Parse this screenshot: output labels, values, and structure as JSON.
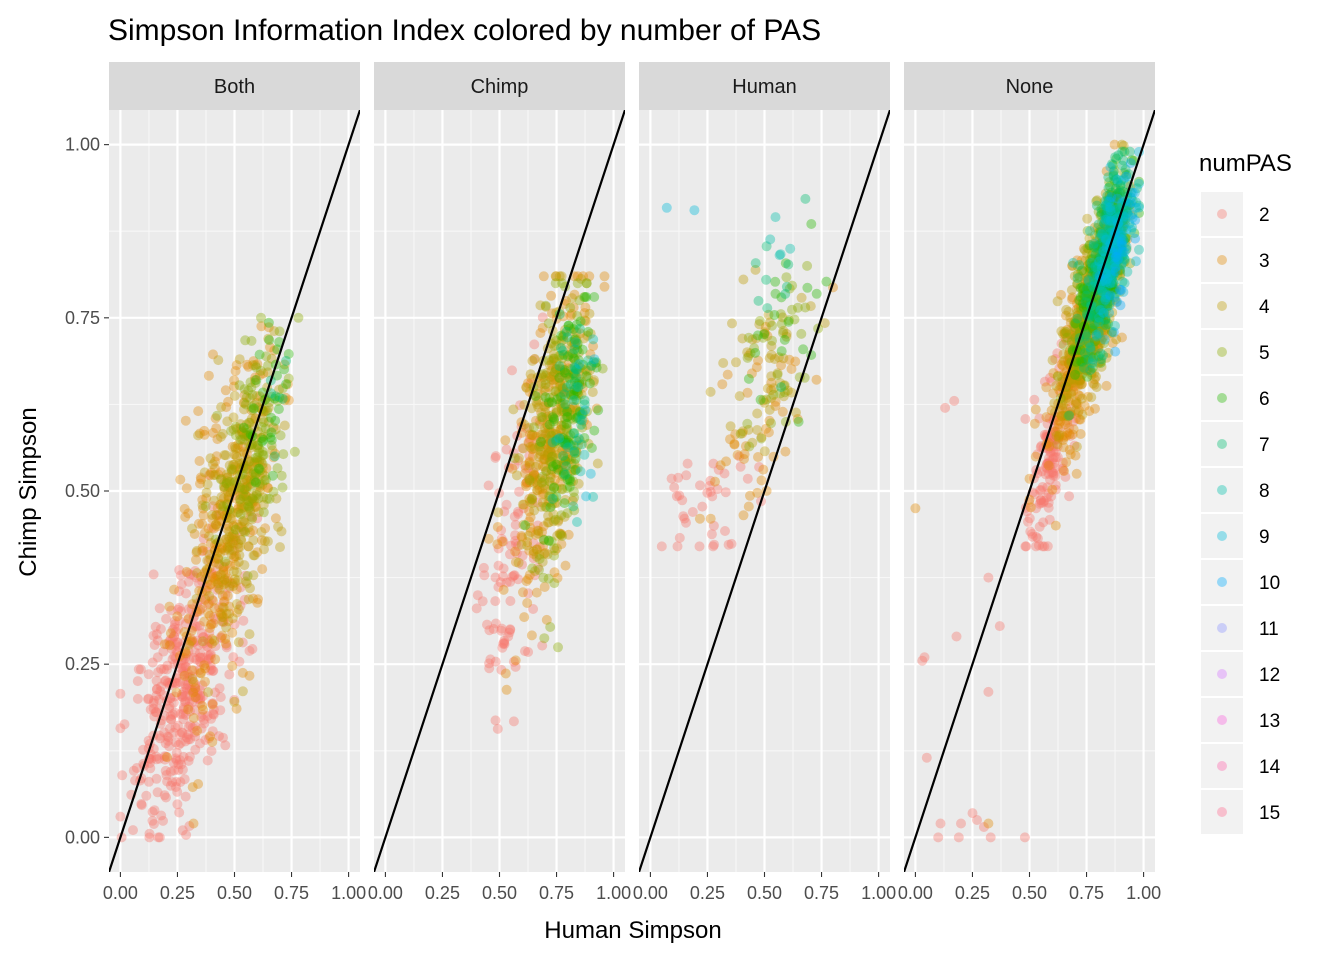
{
  "chart_data": {
    "type": "scatter",
    "title": "Simpson Information Index colored by number of PAS",
    "xlabel": "Human Simpson",
    "ylabel": "Chimp Simpson",
    "xlim": [
      -0.05,
      1.05
    ],
    "ylim": [
      -0.05,
      1.05
    ],
    "x_ticks": [
      "0.00",
      "0.25",
      "0.50",
      "0.75",
      "1.00"
    ],
    "y_ticks": [
      "0.00",
      "0.25",
      "0.50",
      "0.75",
      "1.00"
    ],
    "x_tick_values": [
      0,
      0.25,
      0.5,
      0.75,
      1
    ],
    "y_tick_values": [
      0,
      0.25,
      0.5,
      0.75,
      1
    ],
    "reference_line": {
      "intercept": 0,
      "slope": 1
    },
    "legend": {
      "title": "numPAS",
      "position": "right",
      "entries": [
        "2",
        "3",
        "4",
        "5",
        "6",
        "7",
        "8",
        "9",
        "10",
        "11",
        "12",
        "13",
        "14",
        "15"
      ],
      "colors": [
        "#F8766D",
        "#E18A00",
        "#BE9C00",
        "#8CAB00",
        "#24B700",
        "#00BE70",
        "#00C1AB",
        "#00BBDA",
        "#00ACFC",
        "#8B93FF",
        "#D575FE",
        "#F962DD",
        "#FF65AC",
        "#FF6C91"
      ]
    },
    "point_alpha": 0.38,
    "panels": [
      {
        "label": "Both",
        "clusters": [
          {
            "pas": 2,
            "n": 420,
            "cx": 0.28,
            "cy": 0.22,
            "sx": 0.11,
            "sy": 0.1,
            "rho": 0.55,
            "xmin": 0.0,
            "xmax": 0.76,
            "ymin": 0.0,
            "ymax": 0.8
          },
          {
            "pas": 3,
            "n": 300,
            "cx": 0.45,
            "cy": 0.42,
            "sx": 0.11,
            "sy": 0.13,
            "rho": 0.6,
            "xmin": 0.1,
            "xmax": 0.78,
            "ymin": 0.02,
            "ymax": 0.75
          },
          {
            "pas": 4,
            "n": 230,
            "cx": 0.53,
            "cy": 0.5,
            "sx": 0.09,
            "sy": 0.1,
            "rho": 0.5,
            "xmin": 0.15,
            "xmax": 0.78,
            "ymin": 0.05,
            "ymax": 0.75
          },
          {
            "pas": 5,
            "n": 110,
            "cx": 0.59,
            "cy": 0.56,
            "sx": 0.08,
            "sy": 0.08,
            "rho": 0.4,
            "xmin": 0.3,
            "xmax": 0.78,
            "ymin": 0.15,
            "ymax": 0.75
          },
          {
            "pas": 6,
            "n": 30,
            "cx": 0.66,
            "cy": 0.62,
            "sx": 0.05,
            "sy": 0.05,
            "rho": 0.3,
            "xmin": 0.45,
            "xmax": 0.78,
            "ymin": 0.4,
            "ymax": 0.75
          },
          {
            "pas": 7,
            "n": 6,
            "cx": 0.7,
            "cy": 0.64,
            "sx": 0.03,
            "sy": 0.04,
            "rho": 0.2,
            "xmin": 0.6,
            "xmax": 0.78,
            "ymin": 0.55,
            "ymax": 0.72
          }
        ]
      },
      {
        "label": "Chimp",
        "clusters": [
          {
            "pas": 2,
            "n": 110,
            "cx": 0.56,
            "cy": 0.42,
            "sx": 0.07,
            "sy": 0.12,
            "rho": 0.5,
            "xmin": 0.4,
            "xmax": 0.96,
            "ymin": 0.01,
            "ymax": 0.81
          },
          {
            "pas": 3,
            "n": 220,
            "cx": 0.72,
            "cy": 0.55,
            "sx": 0.09,
            "sy": 0.12,
            "rho": 0.55,
            "xmin": 0.45,
            "xmax": 0.96,
            "ymin": 0.05,
            "ymax": 0.81
          },
          {
            "pas": 4,
            "n": 220,
            "cx": 0.74,
            "cy": 0.6,
            "sx": 0.08,
            "sy": 0.1,
            "rho": 0.5,
            "xmin": 0.45,
            "xmax": 0.96,
            "ymin": 0.05,
            "ymax": 0.81
          },
          {
            "pas": 5,
            "n": 120,
            "cx": 0.78,
            "cy": 0.58,
            "sx": 0.07,
            "sy": 0.11,
            "rho": 0.45,
            "xmin": 0.5,
            "xmax": 0.96,
            "ymin": 0.05,
            "ymax": 0.8
          },
          {
            "pas": 6,
            "n": 90,
            "cx": 0.8,
            "cy": 0.62,
            "sx": 0.06,
            "sy": 0.08,
            "rho": 0.4,
            "xmin": 0.55,
            "xmax": 0.96,
            "ymin": 0.3,
            "ymax": 0.78
          },
          {
            "pas": 7,
            "n": 35,
            "cx": 0.82,
            "cy": 0.64,
            "sx": 0.05,
            "sy": 0.06,
            "rho": 0.3,
            "xmin": 0.6,
            "xmax": 0.96,
            "ymin": 0.35,
            "ymax": 0.78
          },
          {
            "pas": 8,
            "n": 14,
            "cx": 0.85,
            "cy": 0.6,
            "sx": 0.05,
            "sy": 0.1,
            "rho": 0.2,
            "xmin": 0.65,
            "xmax": 0.96,
            "ymin": 0.03,
            "ymax": 0.78
          },
          {
            "pas": 9,
            "n": 6,
            "cx": 0.87,
            "cy": 0.58,
            "sx": 0.04,
            "sy": 0.1,
            "rho": 0.2,
            "xmin": 0.65,
            "xmax": 0.96,
            "ymin": 0.2,
            "ymax": 0.75
          }
        ]
      },
      {
        "label": "Human",
        "clusters": [
          {
            "pas": 2,
            "n": 40,
            "cx": 0.24,
            "cy": 0.5,
            "sx": 0.09,
            "sy": 0.05,
            "rho": 0.3,
            "xmin": 0.05,
            "xmax": 0.5,
            "ymin": 0.42,
            "ymax": 0.62
          },
          {
            "pas": 3,
            "n": 50,
            "cx": 0.43,
            "cy": 0.6,
            "sx": 0.12,
            "sy": 0.08,
            "rho": 0.4,
            "xmin": 0.05,
            "xmax": 0.8,
            "ymin": 0.46,
            "ymax": 0.8
          },
          {
            "pas": 4,
            "n": 50,
            "cx": 0.48,
            "cy": 0.66,
            "sx": 0.11,
            "sy": 0.08,
            "rho": 0.4,
            "xmin": 0.05,
            "xmax": 0.8,
            "ymin": 0.5,
            "ymax": 0.82
          },
          {
            "pas": 5,
            "n": 35,
            "cx": 0.56,
            "cy": 0.7,
            "sx": 0.09,
            "sy": 0.07,
            "rho": 0.4,
            "xmin": 0.2,
            "xmax": 0.8,
            "ymin": 0.55,
            "ymax": 0.95
          },
          {
            "pas": 6,
            "n": 20,
            "cx": 0.6,
            "cy": 0.74,
            "sx": 0.08,
            "sy": 0.07,
            "rho": 0.3,
            "xmin": 0.1,
            "xmax": 0.8,
            "ymin": 0.6,
            "ymax": 0.92
          },
          {
            "pas": 7,
            "n": 10,
            "cx": 0.6,
            "cy": 0.8,
            "sx": 0.08,
            "sy": 0.06,
            "rho": 0.2,
            "xmin": 0.2,
            "xmax": 0.8,
            "ymin": 0.65,
            "ymax": 0.93
          },
          {
            "pas": 8,
            "n": 5,
            "cx": 0.58,
            "cy": 0.86,
            "sx": 0.08,
            "sy": 0.05,
            "rho": 0.2,
            "xmin": 0.3,
            "xmax": 0.8,
            "ymin": 0.75,
            "ymax": 0.93
          },
          {
            "pas": 9,
            "n": 2,
            "cx": 0.3,
            "cy": 0.9,
            "sx": 0.2,
            "sy": 0.02,
            "rho": 0.0,
            "xmin": 0.0,
            "xmax": 0.8,
            "ymin": 0.85,
            "ymax": 0.93
          }
        ]
      },
      {
        "label": "None",
        "clusters": [
          {
            "pas": 2,
            "n": 150,
            "cx": 0.6,
            "cy": 0.56,
            "sx": 0.05,
            "sy": 0.07,
            "rho": 0.7,
            "xmin": 0.45,
            "xmax": 0.98,
            "ymin": 0.42,
            "ymax": 1.0
          },
          {
            "pas": 3,
            "n": 280,
            "cx": 0.72,
            "cy": 0.7,
            "sx": 0.08,
            "sy": 0.09,
            "rho": 0.75,
            "xmin": 0.5,
            "xmax": 0.98,
            "ymin": 0.45,
            "ymax": 1.0
          },
          {
            "pas": 4,
            "n": 280,
            "cx": 0.77,
            "cy": 0.76,
            "sx": 0.07,
            "sy": 0.08,
            "rho": 0.7,
            "xmin": 0.55,
            "xmax": 0.98,
            "ymin": 0.5,
            "ymax": 1.0
          },
          {
            "pas": 5,
            "n": 220,
            "cx": 0.8,
            "cy": 0.8,
            "sx": 0.06,
            "sy": 0.07,
            "rho": 0.7,
            "xmin": 0.6,
            "xmax": 0.98,
            "ymin": 0.55,
            "ymax": 1.0
          },
          {
            "pas": 6,
            "n": 200,
            "cx": 0.83,
            "cy": 0.82,
            "sx": 0.06,
            "sy": 0.07,
            "rho": 0.7,
            "xmin": 0.62,
            "xmax": 0.98,
            "ymin": 0.58,
            "ymax": 0.99
          },
          {
            "pas": 7,
            "n": 180,
            "cx": 0.84,
            "cy": 0.84,
            "sx": 0.05,
            "sy": 0.07,
            "rho": 0.65,
            "xmin": 0.65,
            "xmax": 0.98,
            "ymin": 0.6,
            "ymax": 0.99
          },
          {
            "pas": 8,
            "n": 120,
            "cx": 0.86,
            "cy": 0.85,
            "sx": 0.05,
            "sy": 0.06,
            "rho": 0.6,
            "xmin": 0.68,
            "xmax": 0.98,
            "ymin": 0.62,
            "ymax": 0.99
          },
          {
            "pas": 9,
            "n": 60,
            "cx": 0.88,
            "cy": 0.86,
            "sx": 0.05,
            "sy": 0.06,
            "rho": 0.55,
            "xmin": 0.7,
            "xmax": 0.98,
            "ymin": 0.52,
            "ymax": 0.99
          },
          {
            "pas": 10,
            "n": 25,
            "cx": 0.9,
            "cy": 0.86,
            "sx": 0.04,
            "sy": 0.06,
            "rho": 0.5,
            "xmin": 0.75,
            "xmax": 0.98,
            "ymin": 0.6,
            "ymax": 0.98
          }
        ],
        "extra_points": [
          {
            "pas": 2,
            "x": 0.13,
            "y": 0.62
          },
          {
            "pas": 2,
            "x": 0.17,
            "y": 0.63
          },
          {
            "pas": 2,
            "x": 0.03,
            "y": 0.255
          },
          {
            "pas": 2,
            "x": 0.04,
            "y": 0.26
          },
          {
            "pas": 2,
            "x": 0.18,
            "y": 0.29
          },
          {
            "pas": 2,
            "x": 0.32,
            "y": 0.375
          },
          {
            "pas": 2,
            "x": 0.37,
            "y": 0.305
          },
          {
            "pas": 2,
            "x": 0.32,
            "y": 0.21
          },
          {
            "pas": 2,
            "x": 0.05,
            "y": 0.115
          },
          {
            "pas": 2,
            "x": 0.11,
            "y": 0.02
          },
          {
            "pas": 2,
            "x": 0.2,
            "y": 0.02
          },
          {
            "pas": 2,
            "x": 0.25,
            "y": 0.035
          },
          {
            "pas": 2,
            "x": 0.27,
            "y": 0.025
          },
          {
            "pas": 2,
            "x": 0.3,
            "y": 0.015
          },
          {
            "pas": 2,
            "x": 0.1,
            "y": 0.0
          },
          {
            "pas": 2,
            "x": 0.19,
            "y": 0.0
          },
          {
            "pas": 2,
            "x": 0.33,
            "y": 0.0
          },
          {
            "pas": 2,
            "x": 0.48,
            "y": 0.0
          },
          {
            "pas": 3,
            "x": 0.0,
            "y": 0.475
          },
          {
            "pas": 3,
            "x": 0.32,
            "y": 0.02
          }
        ]
      }
    ]
  }
}
